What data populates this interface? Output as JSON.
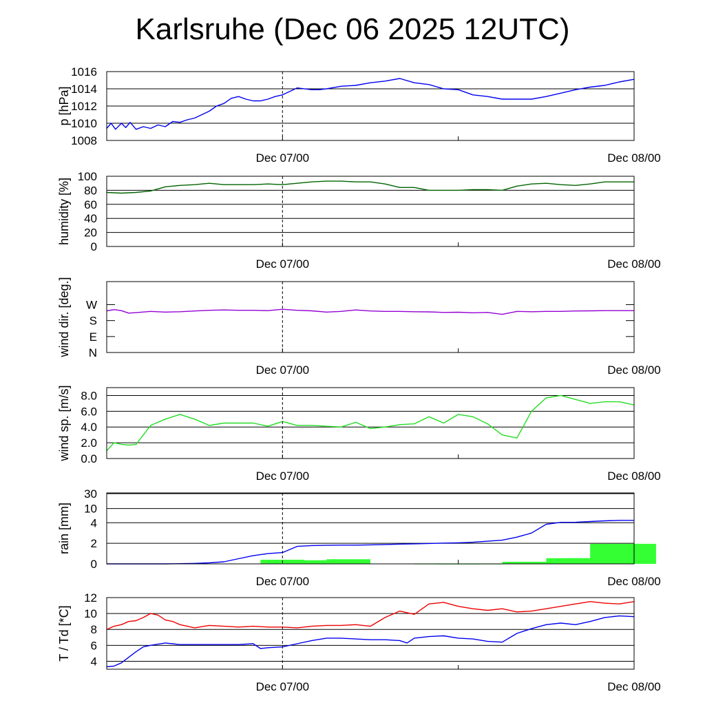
{
  "title": "Karlsruhe (Dec 06 2025 12UTC)",
  "x_axis": {
    "labels": [
      "Dec 07/00",
      "Dec 08/00"
    ],
    "hours_span": 36
  },
  "chart_data": [
    {
      "type": "line",
      "id": "pressure",
      "ylabel": "p [hPa]",
      "ylim": [
        1008,
        1016
      ],
      "yticks": [
        1008,
        1010,
        1012,
        1014,
        1016
      ],
      "grid": true,
      "series": [
        {
          "name": "pressure",
          "color": "#0000ee",
          "x": [
            0,
            0.3,
            0.6,
            1,
            1.3,
            1.6,
            2,
            2.5,
            3,
            3.5,
            4,
            4.5,
            5,
            5.5,
            6,
            6.5,
            7,
            7.5,
            8,
            8.5,
            9,
            9.5,
            10,
            10.5,
            11,
            11.5,
            12,
            13,
            14,
            14.5,
            15,
            16,
            17,
            18,
            19,
            20,
            21,
            22,
            23,
            24,
            25,
            26,
            27,
            28,
            29,
            30,
            31,
            32,
            33,
            34,
            35,
            36
          ],
          "values": [
            1009.4,
            1010,
            1009.3,
            1010,
            1009.5,
            1010.1,
            1009.3,
            1009.6,
            1009.4,
            1009.8,
            1009.6,
            1010.2,
            1010.1,
            1010.4,
            1010.6,
            1011,
            1011.4,
            1012,
            1012.3,
            1012.9,
            1013.1,
            1012.8,
            1012.6,
            1012.6,
            1012.8,
            1013.1,
            1013.3,
            1014.1,
            1013.9,
            1013.9,
            1014,
            1014.3,
            1014.4,
            1014.7,
            1014.9,
            1015.2,
            1014.7,
            1014.5,
            1014,
            1013.9,
            1013.3,
            1013.1,
            1012.8,
            1012.8,
            1012.8,
            1013.1,
            1013.5,
            1013.9,
            1014.2,
            1014.4,
            1014.8,
            1015.1
          ]
        }
      ]
    },
    {
      "type": "line",
      "id": "humidity",
      "ylabel": "humidity [%]",
      "ylim": [
        0,
        100
      ],
      "yticks": [
        0,
        20,
        40,
        60,
        80,
        100
      ],
      "grid": true,
      "series": [
        {
          "name": "humidity",
          "color": "#006400",
          "x": [
            0,
            1,
            2,
            3,
            4,
            5,
            6,
            7,
            8,
            9,
            10,
            11,
            12,
            13,
            14,
            15,
            16,
            17,
            18,
            19,
            20,
            21,
            22,
            23,
            24,
            25,
            26,
            27,
            28,
            29,
            30,
            31,
            32,
            33,
            34,
            35,
            36
          ],
          "values": [
            77,
            76,
            77,
            79,
            85,
            87,
            88,
            90,
            88,
            88,
            88,
            89,
            88,
            90,
            92,
            93,
            93,
            92,
            92,
            89,
            84,
            84,
            80,
            80,
            80,
            81,
            81,
            80,
            86,
            89,
            90,
            88,
            87,
            89,
            92,
            92,
            92
          ]
        }
      ]
    },
    {
      "type": "line",
      "id": "wind-direction",
      "ylabel": "wind dir. [deg.]",
      "ylim": [
        0,
        400
      ],
      "yticks": [
        0,
        90,
        180,
        270
      ],
      "ytick_labels": [
        "N",
        "E",
        "S",
        "W"
      ],
      "grid": false,
      "series": [
        {
          "name": "wind direction",
          "color": "#9400d3",
          "x": [
            0,
            0.5,
            1,
            1.5,
            2,
            3,
            4,
            5,
            6,
            7,
            8,
            9,
            10,
            11,
            12,
            13,
            14,
            15,
            16,
            17,
            18,
            19,
            20,
            21,
            22,
            23,
            24,
            25,
            26,
            27,
            28,
            29,
            30,
            31,
            32,
            33,
            34,
            35,
            36
          ],
          "values": [
            235,
            242,
            236,
            222,
            225,
            232,
            228,
            230,
            234,
            238,
            240,
            238,
            238,
            236,
            244,
            238,
            235,
            228,
            232,
            240,
            234,
            232,
            232,
            230,
            229,
            226,
            227,
            224,
            226,
            215,
            232,
            230,
            232,
            232,
            234,
            235,
            236,
            236,
            236
          ]
        }
      ]
    },
    {
      "type": "line",
      "id": "wind-speed",
      "ylabel": "wind sp. [m/s]",
      "ylim": [
        0,
        9
      ],
      "yticks": [
        0,
        2,
        4,
        6,
        8
      ],
      "ytick_labels": [
        "0.0",
        "2.0",
        "4.0",
        "6.0",
        "8.0"
      ],
      "grid": true,
      "series": [
        {
          "name": "wind speed",
          "color": "#22dd22",
          "x": [
            0,
            0.5,
            1,
            1.5,
            2,
            3,
            4,
            5,
            6,
            7,
            8,
            9,
            10,
            11,
            12,
            13,
            14,
            15,
            16,
            17,
            18,
            19,
            20,
            21,
            22,
            23,
            24,
            25,
            26,
            27,
            28,
            29,
            30,
            31,
            32,
            33,
            34,
            35,
            36
          ],
          "values": [
            1,
            2,
            1.8,
            1.7,
            1.8,
            4.2,
            5,
            5.6,
            5,
            4.2,
            4.5,
            4.5,
            4.5,
            4.1,
            4.7,
            4.2,
            4.2,
            4.1,
            4,
            4.6,
            3.8,
            4,
            4.3,
            4.4,
            5.3,
            4.5,
            5.6,
            5.3,
            4.4,
            3,
            2.6,
            6,
            7.7,
            8,
            7.5,
            7,
            7.2,
            7.2,
            6.8
          ]
        }
      ]
    },
    {
      "type": "bar+line",
      "id": "rain",
      "ylabel": "rain [mm]",
      "yticks": [
        0,
        2,
        4,
        10,
        30
      ],
      "scale": "nonlinear",
      "grid": true,
      "bars": {
        "name": "hourly rain",
        "color": "#33ff33",
        "start": [
          0,
          3,
          6,
          7.5,
          9,
          10.5,
          12,
          13.5,
          15,
          16.5,
          18,
          19.5,
          21,
          22.5,
          24,
          25.5,
          27,
          28.5,
          30,
          31.5,
          33,
          34.5
        ],
        "values": [
          0,
          0,
          0,
          0,
          0,
          0.4,
          0.35,
          0.3,
          0.45,
          0,
          0,
          0,
          0.02,
          0.02,
          0.02,
          0,
          0.2,
          0.2,
          0.55,
          0.55,
          1.95,
          1.95
        ],
        "width": 3
      },
      "series": [
        {
          "name": "accumulated rain",
          "color": "#0000ee",
          "x": [
            0,
            1,
            2,
            3,
            4,
            5,
            6,
            7,
            8,
            9,
            10,
            11,
            12,
            13,
            14,
            15,
            16,
            17,
            18,
            19,
            20,
            21,
            22,
            23,
            24,
            25,
            26,
            27,
            28,
            29,
            30,
            31,
            32,
            33,
            34,
            35,
            36
          ],
          "values": [
            0,
            0,
            0,
            0,
            0,
            0.02,
            0.05,
            0.1,
            0.2,
            0.5,
            0.8,
            1,
            1.1,
            1.7,
            1.78,
            1.8,
            1.82,
            1.82,
            1.85,
            1.88,
            1.92,
            1.95,
            1.98,
            2.02,
            2.05,
            2.1,
            2.2,
            2.3,
            2.6,
            3,
            3.85,
            4.15,
            4.2,
            4.5,
            4.8,
            5,
            5
          ]
        }
      ]
    },
    {
      "type": "line",
      "id": "temperature",
      "ylabel": "T / Td [*C]",
      "ylim": [
        3,
        12
      ],
      "yticks": [
        4,
        6,
        8,
        10,
        12
      ],
      "grid": true,
      "series": [
        {
          "name": "T",
          "color": "#ee0000",
          "x": [
            0,
            0.5,
            1,
            1.5,
            2,
            2.5,
            3,
            3.5,
            4,
            4.5,
            5,
            5.5,
            6,
            7,
            8,
            9,
            10,
            11,
            12,
            13,
            14,
            15,
            16,
            17,
            18,
            19,
            20,
            21,
            22,
            23,
            24,
            25,
            26,
            27,
            28,
            29,
            30,
            31,
            32,
            33,
            34,
            35,
            36
          ],
          "values": [
            8,
            8.4,
            8.6,
            9,
            9.1,
            9.5,
            10,
            9.8,
            9.2,
            9,
            8.6,
            8.4,
            8.2,
            8.5,
            8.4,
            8.3,
            8.4,
            8.3,
            8.3,
            8.2,
            8.4,
            8.5,
            8.5,
            8.6,
            8.4,
            9.5,
            10.3,
            9.9,
            11.2,
            11.4,
            10.9,
            10.6,
            10.4,
            10.6,
            10.2,
            10.3,
            10.6,
            10.9,
            11.2,
            11.5,
            11.3,
            11.2,
            11.5
          ]
        },
        {
          "name": "Td",
          "color": "#0000ee",
          "x": [
            0,
            0.5,
            1,
            1.5,
            2,
            2.5,
            3,
            4,
            5,
            6,
            7,
            8,
            9,
            10,
            10.5,
            11,
            12,
            13,
            14,
            15,
            16,
            17,
            18,
            19,
            20,
            20.5,
            21,
            22,
            23,
            24,
            25,
            26,
            27,
            28,
            29,
            30,
            31,
            32,
            33,
            34,
            35,
            36
          ],
          "values": [
            3.3,
            3.4,
            3.8,
            4.5,
            5.2,
            5.8,
            6,
            6.3,
            6.1,
            6.1,
            6.1,
            6.1,
            6.1,
            6.2,
            5.6,
            5.7,
            5.8,
            6.2,
            6.6,
            6.9,
            6.9,
            6.8,
            6.7,
            6.7,
            6.6,
            6.3,
            6.9,
            7.1,
            7.2,
            6.9,
            6.8,
            6.5,
            6.4,
            7.5,
            8.1,
            8.6,
            8.8,
            8.6,
            9,
            9.5,
            9.7,
            9.6
          ]
        }
      ]
    }
  ]
}
